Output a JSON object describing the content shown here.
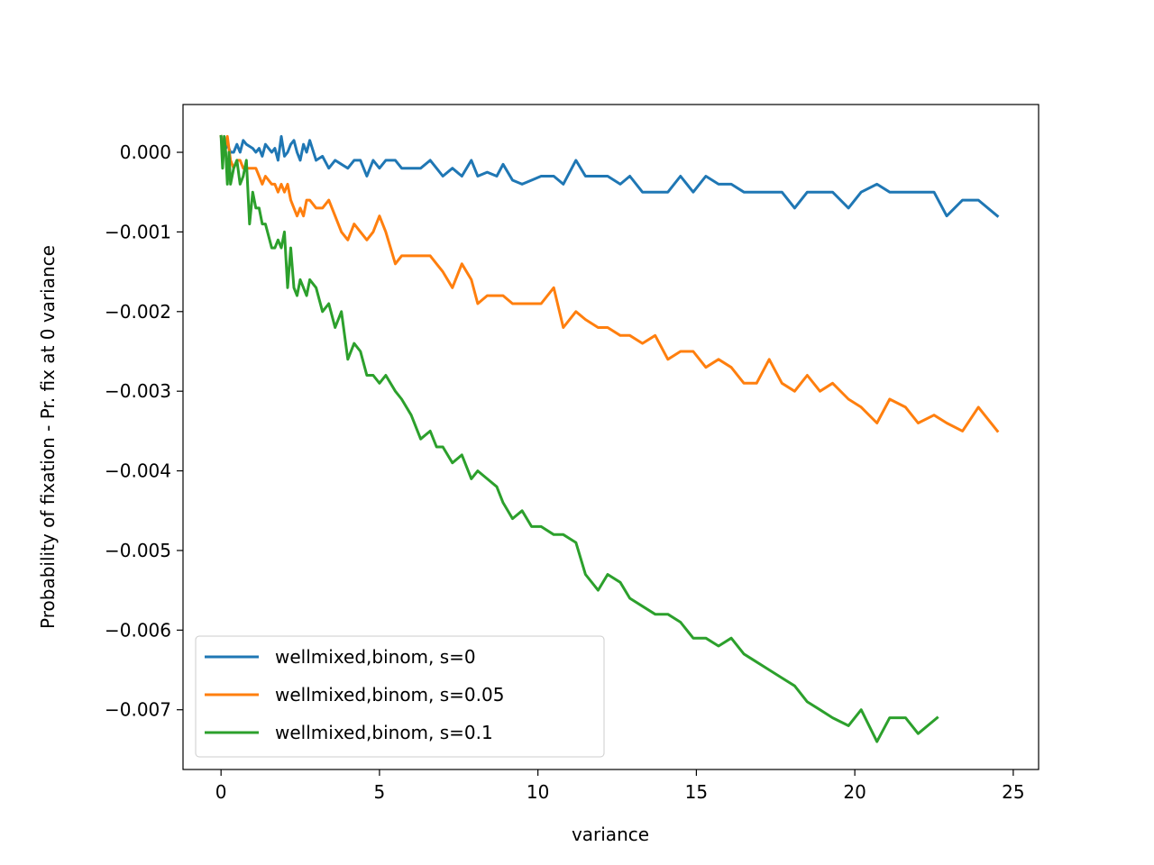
{
  "chart_data": {
    "type": "line",
    "title": "",
    "xlabel": "variance",
    "ylabel": "Probability of fixation - Pr. fix at 0 variance",
    "xlim": [
      -1.2,
      25.8
    ],
    "ylim": [
      -0.00775,
      0.0006
    ],
    "xticks": [
      0,
      5,
      10,
      15,
      20,
      25
    ],
    "xtick_labels": [
      "0",
      "5",
      "10",
      "15",
      "20",
      "25"
    ],
    "yticks": [
      0.0,
      -0.001,
      -0.002,
      -0.003,
      -0.004,
      -0.005,
      -0.006,
      -0.007
    ],
    "ytick_labels": [
      "0.000",
      "−0.001",
      "−0.002",
      "−0.003",
      "−0.004",
      "−0.005",
      "−0.006",
      "−0.007"
    ],
    "grid": false,
    "legend_position": "lower-left",
    "series": [
      {
        "name": "wellmixed,binom, s=0",
        "color": "#1f77b4",
        "x": [
          0,
          0.1,
          0.2,
          0.3,
          0.4,
          0.5,
          0.6,
          0.7,
          0.8,
          1.0,
          1.1,
          1.2,
          1.3,
          1.4,
          1.6,
          1.7,
          1.8,
          1.9,
          2.0,
          2.1,
          2.2,
          2.3,
          2.4,
          2.5,
          2.6,
          2.7,
          2.8,
          3.0,
          3.2,
          3.4,
          3.6,
          3.8,
          4.0,
          4.2,
          4.4,
          4.6,
          4.8,
          5.0,
          5.2,
          5.5,
          5.7,
          6.0,
          6.3,
          6.6,
          6.8,
          7.0,
          7.3,
          7.6,
          7.9,
          8.1,
          8.4,
          8.7,
          8.9,
          9.2,
          9.5,
          9.8,
          10.1,
          10.5,
          10.8,
          11.2,
          11.5,
          11.9,
          12.2,
          12.6,
          12.9,
          13.3,
          13.7,
          14.1,
          14.5,
          14.9,
          15.3,
          15.7,
          16.1,
          16.5,
          16.9,
          17.3,
          17.7,
          18.1,
          18.5,
          18.9,
          19.3,
          19.8,
          20.2,
          20.7,
          21.1,
          21.6,
          22.0,
          22.5,
          22.9,
          23.4,
          23.9,
          24.5
        ],
        "y": [
          0.0002,
          0.0,
          0.0001,
          0.0,
          0.0,
          0.0001,
          0.0,
          0.00015,
          0.0001,
          5e-05,
          0.0,
          5e-05,
          -5e-05,
          0.0001,
          0.0,
          5e-05,
          -0.0001,
          0.0002,
          -5e-05,
          0.0,
          0.0001,
          0.00015,
          0.0,
          -0.0001,
          0.0001,
          0.0,
          0.00015,
          -0.0001,
          -5e-05,
          -0.0002,
          -0.0001,
          -0.00015,
          -0.0002,
          -0.0001,
          -0.0001,
          -0.0003,
          -0.0001,
          -0.0002,
          -0.0001,
          -0.0001,
          -0.0002,
          -0.0002,
          -0.0002,
          -0.0001,
          -0.0002,
          -0.0003,
          -0.0002,
          -0.0003,
          -0.0001,
          -0.0003,
          -0.00025,
          -0.0003,
          -0.00015,
          -0.00035,
          -0.0004,
          -0.00035,
          -0.0003,
          -0.0003,
          -0.0004,
          -0.0001,
          -0.0003,
          -0.0003,
          -0.0003,
          -0.0004,
          -0.0003,
          -0.0005,
          -0.0005,
          -0.0005,
          -0.0003,
          -0.0005,
          -0.0003,
          -0.0004,
          -0.0004,
          -0.0005,
          -0.0005,
          -0.0005,
          -0.0005,
          -0.0007,
          -0.0005,
          -0.0005,
          -0.0005,
          -0.0007,
          -0.0005,
          -0.0004,
          -0.0005,
          -0.0005,
          -0.0005,
          -0.0005,
          -0.0008,
          -0.0006,
          -0.0006,
          -0.0008
        ]
      },
      {
        "name": "wellmixed,binom, s=0.05",
        "color": "#ff7f0e",
        "x": [
          0,
          0.1,
          0.2,
          0.3,
          0.4,
          0.5,
          0.6,
          0.7,
          0.8,
          1.0,
          1.1,
          1.2,
          1.3,
          1.4,
          1.6,
          1.7,
          1.8,
          1.9,
          2.0,
          2.1,
          2.2,
          2.3,
          2.4,
          2.5,
          2.6,
          2.7,
          2.8,
          3.0,
          3.2,
          3.4,
          3.6,
          3.8,
          4.0,
          4.2,
          4.4,
          4.6,
          4.8,
          5.0,
          5.2,
          5.5,
          5.7,
          6.0,
          6.3,
          6.6,
          6.8,
          7.0,
          7.3,
          7.6,
          7.9,
          8.1,
          8.4,
          8.7,
          8.9,
          9.2,
          9.5,
          9.8,
          10.1,
          10.5,
          10.8,
          11.2,
          11.5,
          11.9,
          12.2,
          12.6,
          12.9,
          13.3,
          13.7,
          14.1,
          14.5,
          14.9,
          15.3,
          15.7,
          16.1,
          16.5,
          16.9,
          17.3,
          17.7,
          18.1,
          18.5,
          18.9,
          19.3,
          19.8,
          20.2,
          20.7,
          21.1,
          21.6,
          22.0,
          22.5,
          22.9,
          23.4,
          23.9,
          24.5
        ],
        "y": [
          0.0002,
          0.0,
          0.0002,
          -0.0001,
          -0.0002,
          -0.0001,
          -0.0001,
          -0.0002,
          -0.0002,
          -0.0002,
          -0.0002,
          -0.0003,
          -0.0004,
          -0.0003,
          -0.0004,
          -0.0004,
          -0.0005,
          -0.0004,
          -0.0005,
          -0.0004,
          -0.0006,
          -0.0007,
          -0.0008,
          -0.0007,
          -0.0008,
          -0.0006,
          -0.0006,
          -0.0007,
          -0.0007,
          -0.0006,
          -0.0008,
          -0.001,
          -0.0011,
          -0.0009,
          -0.001,
          -0.0011,
          -0.001,
          -0.0008,
          -0.001,
          -0.0014,
          -0.0013,
          -0.0013,
          -0.0013,
          -0.0013,
          -0.0014,
          -0.0015,
          -0.0017,
          -0.0014,
          -0.0016,
          -0.0019,
          -0.0018,
          -0.0018,
          -0.0018,
          -0.0019,
          -0.0019,
          -0.0019,
          -0.0019,
          -0.0017,
          -0.0022,
          -0.002,
          -0.0021,
          -0.0022,
          -0.0022,
          -0.0023,
          -0.0023,
          -0.0024,
          -0.0023,
          -0.0026,
          -0.0025,
          -0.0025,
          -0.0027,
          -0.0026,
          -0.0027,
          -0.0029,
          -0.0029,
          -0.0026,
          -0.0029,
          -0.003,
          -0.0028,
          -0.003,
          -0.0029,
          -0.0031,
          -0.0032,
          -0.0034,
          -0.0031,
          -0.0032,
          -0.0034,
          -0.0033,
          -0.0034,
          -0.0035,
          -0.0032,
          -0.0035
        ]
      },
      {
        "name": "wellmixed,binom, s=0.1",
        "color": "#2ca02c",
        "x": [
          0,
          0.05,
          0.1,
          0.15,
          0.2,
          0.25,
          0.3,
          0.4,
          0.5,
          0.6,
          0.7,
          0.8,
          0.9,
          1.0,
          1.1,
          1.2,
          1.3,
          1.4,
          1.6,
          1.7,
          1.8,
          1.9,
          2.0,
          2.1,
          2.2,
          2.3,
          2.4,
          2.5,
          2.6,
          2.7,
          2.8,
          3.0,
          3.2,
          3.4,
          3.6,
          3.8,
          4.0,
          4.2,
          4.4,
          4.6,
          4.8,
          5.0,
          5.2,
          5.5,
          5.7,
          6.0,
          6.3,
          6.6,
          6.8,
          7.0,
          7.3,
          7.6,
          7.9,
          8.1,
          8.4,
          8.7,
          8.9,
          9.2,
          9.5,
          9.8,
          10.1,
          10.5,
          10.8,
          11.2,
          11.5,
          11.9,
          12.2,
          12.6,
          12.9,
          13.3,
          13.7,
          14.1,
          14.5,
          14.9,
          15.3,
          15.7,
          16.1,
          16.5,
          16.9,
          17.3,
          17.7,
          18.1,
          18.5,
          18.9,
          19.3,
          19.8,
          20.2,
          20.7,
          21.1,
          21.6,
          22.0,
          22.6
        ],
        "y": [
          0.0002,
          -0.0002,
          0.0002,
          0.0,
          -0.0004,
          0.0,
          -0.0004,
          -0.0002,
          -0.0001,
          -0.0004,
          -0.0003,
          -0.0001,
          -0.0009,
          -0.0005,
          -0.0007,
          -0.0007,
          -0.0009,
          -0.0009,
          -0.0012,
          -0.0012,
          -0.0011,
          -0.0012,
          -0.001,
          -0.0017,
          -0.0012,
          -0.0017,
          -0.0018,
          -0.0016,
          -0.0017,
          -0.0018,
          -0.0016,
          -0.0017,
          -0.002,
          -0.0019,
          -0.0022,
          -0.002,
          -0.0026,
          -0.0024,
          -0.0025,
          -0.0028,
          -0.0028,
          -0.0029,
          -0.0028,
          -0.003,
          -0.0031,
          -0.0033,
          -0.0036,
          -0.0035,
          -0.0037,
          -0.0037,
          -0.0039,
          -0.0038,
          -0.0041,
          -0.004,
          -0.0041,
          -0.0042,
          -0.0044,
          -0.0046,
          -0.0045,
          -0.0047,
          -0.0047,
          -0.0048,
          -0.0048,
          -0.0049,
          -0.0053,
          -0.0055,
          -0.0053,
          -0.0054,
          -0.0056,
          -0.0057,
          -0.0058,
          -0.0058,
          -0.0059,
          -0.0061,
          -0.0061,
          -0.0062,
          -0.0061,
          -0.0063,
          -0.0064,
          -0.0065,
          -0.0066,
          -0.0067,
          -0.0069,
          -0.007,
          -0.0071,
          -0.0072,
          -0.007,
          -0.0074,
          -0.0071,
          -0.0071,
          -0.0073,
          -0.0071
        ]
      }
    ]
  }
}
